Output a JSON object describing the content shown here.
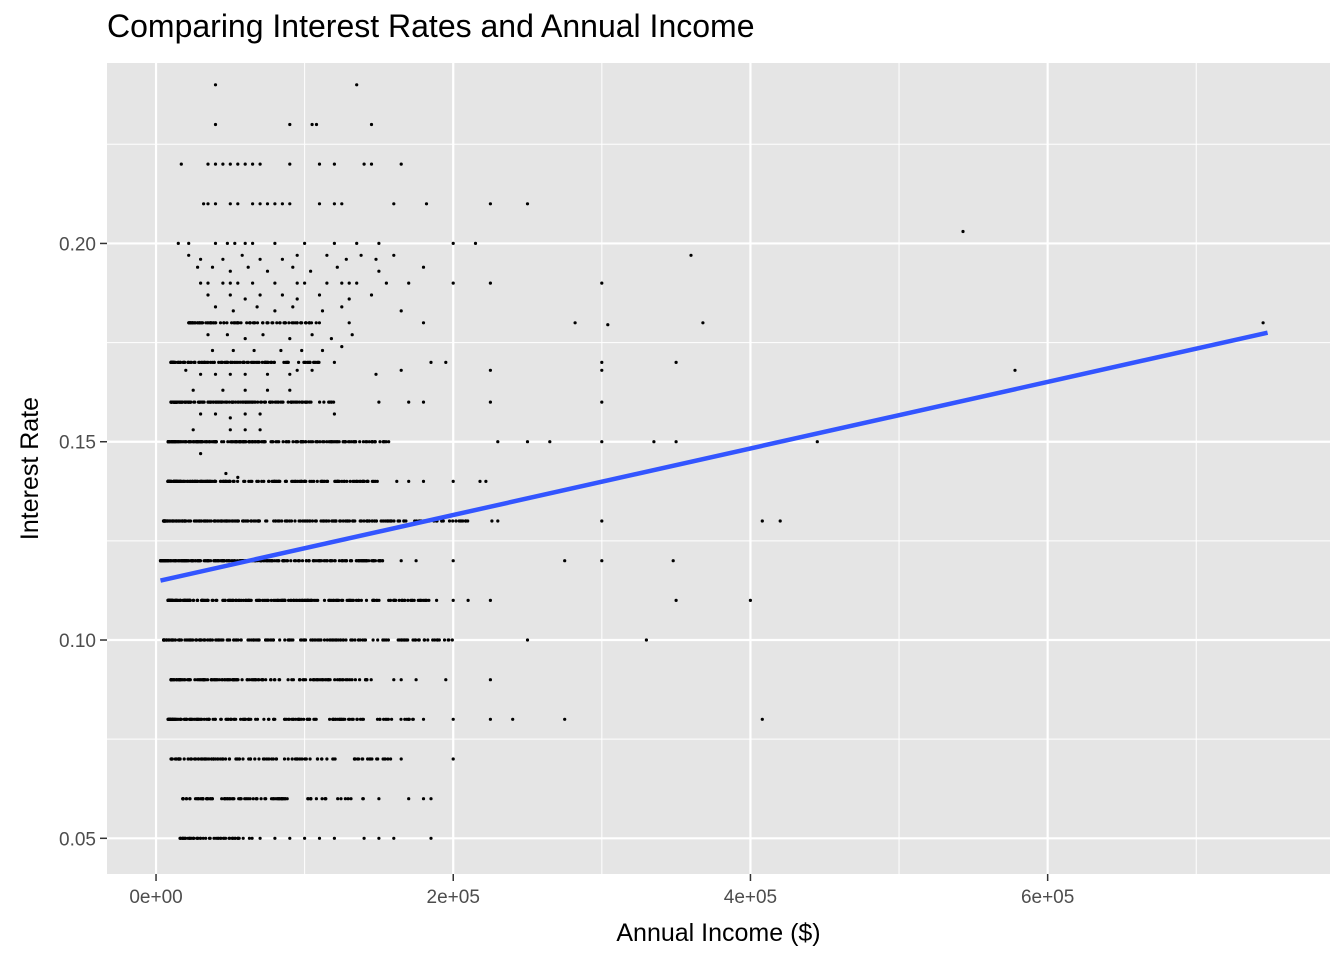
{
  "chart_data": {
    "type": "scatter",
    "title": "Comparing Interest Rates and Annual Income",
    "xlabel": "Annual Income ($)",
    "ylabel": "Interest Rate",
    "xlim": [
      -33000,
      790000
    ],
    "ylim": [
      0.041,
      0.2455
    ],
    "x_ticks": [
      0,
      200000,
      400000,
      600000
    ],
    "x_tick_labels": [
      "0e+00",
      "2e+05",
      "4e+05",
      "6e+05"
    ],
    "x_minor_ticks": [
      100000,
      300000,
      500000,
      700000
    ],
    "y_ticks": [
      0.05,
      0.1,
      0.15,
      0.2
    ],
    "y_tick_labels": [
      "0.05",
      "0.10",
      "0.15",
      "0.20"
    ],
    "y_minor_ticks": [
      0.075,
      0.125,
      0.175,
      0.225
    ],
    "grid": true,
    "legend": "none",
    "panel_color": "#e5e5e5",
    "grid_color": "#ffffff",
    "point_color": "#000000",
    "trend_color": "#3355ff",
    "trend_line": {
      "x": [
        3000,
        748000
      ],
      "y": [
        0.115,
        0.1775
      ]
    },
    "dense_rows": [
      {
        "y": 0.05,
        "min": 15000,
        "max": 65000,
        "n": 50
      },
      {
        "y": 0.06,
        "min": 18000,
        "max": 140000,
        "n": 90
      },
      {
        "y": 0.07,
        "min": 10000,
        "max": 160000,
        "n": 110
      },
      {
        "y": 0.08,
        "min": 8000,
        "max": 175000,
        "n": 160
      },
      {
        "y": 0.09,
        "min": 10000,
        "max": 150000,
        "n": 140
      },
      {
        "y": 0.1,
        "min": 5000,
        "max": 200000,
        "n": 200
      },
      {
        "y": 0.11,
        "min": 8000,
        "max": 190000,
        "n": 230
      },
      {
        "y": 0.12,
        "min": 3000,
        "max": 160000,
        "n": 250
      },
      {
        "y": 0.13,
        "min": 5000,
        "max": 210000,
        "n": 260
      },
      {
        "y": 0.14,
        "min": 8000,
        "max": 150000,
        "n": 200
      },
      {
        "y": 0.15,
        "min": 8000,
        "max": 160000,
        "n": 200
      },
      {
        "y": 0.16,
        "min": 10000,
        "max": 120000,
        "n": 150
      },
      {
        "y": 0.17,
        "min": 10000,
        "max": 110000,
        "n": 110
      },
      {
        "y": 0.18,
        "min": 22000,
        "max": 110000,
        "n": 90
      }
    ],
    "points": [
      [
        40000,
        0.24
      ],
      [
        135000,
        0.24
      ],
      [
        40000,
        0.23
      ],
      [
        90000,
        0.23
      ],
      [
        105000,
        0.23
      ],
      [
        108000,
        0.23
      ],
      [
        145000,
        0.23
      ],
      [
        17000,
        0.22
      ],
      [
        35000,
        0.22
      ],
      [
        40000,
        0.22
      ],
      [
        45000,
        0.22
      ],
      [
        50000,
        0.22
      ],
      [
        55000,
        0.22
      ],
      [
        60000,
        0.22
      ],
      [
        65000,
        0.22
      ],
      [
        70000,
        0.22
      ],
      [
        90000,
        0.22
      ],
      [
        110000,
        0.22
      ],
      [
        120000,
        0.22
      ],
      [
        140000,
        0.22
      ],
      [
        145000,
        0.22
      ],
      [
        165000,
        0.22
      ],
      [
        32000,
        0.21
      ],
      [
        35000,
        0.21
      ],
      [
        40000,
        0.21
      ],
      [
        50000,
        0.21
      ],
      [
        55000,
        0.21
      ],
      [
        65000,
        0.21
      ],
      [
        70000,
        0.21
      ],
      [
        75000,
        0.21
      ],
      [
        80000,
        0.21
      ],
      [
        85000,
        0.21
      ],
      [
        90000,
        0.21
      ],
      [
        110000,
        0.21
      ],
      [
        120000,
        0.21
      ],
      [
        125000,
        0.21
      ],
      [
        160000,
        0.21
      ],
      [
        182000,
        0.21
      ],
      [
        225000,
        0.21
      ],
      [
        250000,
        0.21
      ],
      [
        15000,
        0.2
      ],
      [
        22000,
        0.2
      ],
      [
        40000,
        0.2
      ],
      [
        48000,
        0.2
      ],
      [
        53000,
        0.2
      ],
      [
        60000,
        0.2
      ],
      [
        65000,
        0.2
      ],
      [
        80000,
        0.2
      ],
      [
        100000,
        0.2
      ],
      [
        120000,
        0.2
      ],
      [
        135000,
        0.2
      ],
      [
        150000,
        0.2
      ],
      [
        200000,
        0.2
      ],
      [
        215000,
        0.2
      ],
      [
        543000,
        0.203
      ],
      [
        22000,
        0.197
      ],
      [
        30000,
        0.196
      ],
      [
        45000,
        0.196
      ],
      [
        58000,
        0.197
      ],
      [
        70000,
        0.196
      ],
      [
        85000,
        0.196
      ],
      [
        95000,
        0.197
      ],
      [
        115000,
        0.197
      ],
      [
        128000,
        0.196
      ],
      [
        138000,
        0.197
      ],
      [
        148000,
        0.196
      ],
      [
        160000,
        0.197
      ],
      [
        360000,
        0.197
      ],
      [
        28000,
        0.194
      ],
      [
        38000,
        0.194
      ],
      [
        50000,
        0.193
      ],
      [
        62000,
        0.194
      ],
      [
        75000,
        0.193
      ],
      [
        92000,
        0.194
      ],
      [
        104000,
        0.193
      ],
      [
        122000,
        0.194
      ],
      [
        150000,
        0.193
      ],
      [
        180000,
        0.194
      ],
      [
        30000,
        0.19
      ],
      [
        35000,
        0.19
      ],
      [
        45000,
        0.19
      ],
      [
        50000,
        0.19
      ],
      [
        55000,
        0.19
      ],
      [
        65000,
        0.19
      ],
      [
        80000,
        0.19
      ],
      [
        95000,
        0.19
      ],
      [
        100000,
        0.19
      ],
      [
        115000,
        0.19
      ],
      [
        125000,
        0.19
      ],
      [
        130000,
        0.19
      ],
      [
        135000,
        0.19
      ],
      [
        155000,
        0.19
      ],
      [
        170000,
        0.19
      ],
      [
        200000,
        0.19
      ],
      [
        225000,
        0.19
      ],
      [
        300000,
        0.19
      ],
      [
        35000,
        0.187
      ],
      [
        50000,
        0.187
      ],
      [
        60000,
        0.186
      ],
      [
        70000,
        0.187
      ],
      [
        85000,
        0.187
      ],
      [
        95000,
        0.186
      ],
      [
        110000,
        0.187
      ],
      [
        130000,
        0.186
      ],
      [
        145000,
        0.187
      ],
      [
        40000,
        0.184
      ],
      [
        52000,
        0.183
      ],
      [
        68000,
        0.184
      ],
      [
        80000,
        0.183
      ],
      [
        92000,
        0.184
      ],
      [
        112000,
        0.183
      ],
      [
        125000,
        0.184
      ],
      [
        165000,
        0.183
      ],
      [
        282000,
        0.18
      ],
      [
        304000,
        0.1795
      ],
      [
        368000,
        0.18
      ],
      [
        180000,
        0.18
      ],
      [
        130000,
        0.18
      ],
      [
        745000,
        0.18
      ],
      [
        35000,
        0.177
      ],
      [
        48000,
        0.177
      ],
      [
        60000,
        0.176
      ],
      [
        72000,
        0.177
      ],
      [
        90000,
        0.176
      ],
      [
        105000,
        0.177
      ],
      [
        118000,
        0.176
      ],
      [
        132000,
        0.177
      ],
      [
        38000,
        0.173
      ],
      [
        52000,
        0.173
      ],
      [
        66000,
        0.173
      ],
      [
        84000,
        0.173
      ],
      [
        98000,
        0.173
      ],
      [
        112000,
        0.173
      ],
      [
        125000,
        0.174
      ],
      [
        120000,
        0.17
      ],
      [
        185000,
        0.17
      ],
      [
        195000,
        0.17
      ],
      [
        300000,
        0.17
      ],
      [
        350000,
        0.17
      ],
      [
        20000,
        0.168
      ],
      [
        30000,
        0.167
      ],
      [
        40000,
        0.167
      ],
      [
        50000,
        0.167
      ],
      [
        60000,
        0.167
      ],
      [
        75000,
        0.167
      ],
      [
        90000,
        0.167
      ],
      [
        95000,
        0.168
      ],
      [
        105000,
        0.168
      ],
      [
        148000,
        0.167
      ],
      [
        165000,
        0.168
      ],
      [
        225000,
        0.168
      ],
      [
        300000,
        0.168
      ],
      [
        578000,
        0.168
      ],
      [
        25000,
        0.163
      ],
      [
        45000,
        0.163
      ],
      [
        60000,
        0.163
      ],
      [
        75000,
        0.163
      ],
      [
        90000,
        0.163
      ],
      [
        150000,
        0.16
      ],
      [
        170000,
        0.16
      ],
      [
        180000,
        0.16
      ],
      [
        225000,
        0.16
      ],
      [
        300000,
        0.16
      ],
      [
        30000,
        0.157
      ],
      [
        40000,
        0.157
      ],
      [
        50000,
        0.156
      ],
      [
        60000,
        0.157
      ],
      [
        70000,
        0.157
      ],
      [
        120000,
        0.157
      ],
      [
        25000,
        0.153
      ],
      [
        50000,
        0.153
      ],
      [
        60000,
        0.153
      ],
      [
        70000,
        0.153
      ],
      [
        230000,
        0.15
      ],
      [
        250000,
        0.15
      ],
      [
        265000,
        0.15
      ],
      [
        300000,
        0.15
      ],
      [
        335000,
        0.15
      ],
      [
        350000,
        0.15
      ],
      [
        445000,
        0.15
      ],
      [
        30000,
        0.147
      ],
      [
        47000,
        0.142
      ],
      [
        55000,
        0.141
      ],
      [
        162000,
        0.14
      ],
      [
        170000,
        0.14
      ],
      [
        180000,
        0.14
      ],
      [
        200000,
        0.14
      ],
      [
        218000,
        0.14
      ],
      [
        222000,
        0.14
      ],
      [
        226000,
        0.13
      ],
      [
        230000,
        0.13
      ],
      [
        300000,
        0.13
      ],
      [
        408000,
        0.13
      ],
      [
        420000,
        0.13
      ],
      [
        165000,
        0.12
      ],
      [
        175000,
        0.12
      ],
      [
        200000,
        0.12
      ],
      [
        275000,
        0.12
      ],
      [
        300000,
        0.12
      ],
      [
        348000,
        0.12
      ],
      [
        200000,
        0.11
      ],
      [
        210000,
        0.11
      ],
      [
        225000,
        0.11
      ],
      [
        350000,
        0.11
      ],
      [
        400000,
        0.11
      ],
      [
        250000,
        0.1
      ],
      [
        330000,
        0.1
      ],
      [
        160000,
        0.09
      ],
      [
        165000,
        0.09
      ],
      [
        175000,
        0.09
      ],
      [
        195000,
        0.09
      ],
      [
        225000,
        0.09
      ],
      [
        180000,
        0.08
      ],
      [
        200000,
        0.08
      ],
      [
        225000,
        0.08
      ],
      [
        240000,
        0.08
      ],
      [
        275000,
        0.08
      ],
      [
        408000,
        0.08
      ],
      [
        165000,
        0.07
      ],
      [
        200000,
        0.07
      ],
      [
        150000,
        0.06
      ],
      [
        170000,
        0.06
      ],
      [
        180000,
        0.06
      ],
      [
        185000,
        0.06
      ],
      [
        70000,
        0.05
      ],
      [
        80000,
        0.05
      ],
      [
        90000,
        0.05
      ],
      [
        100000,
        0.05
      ],
      [
        110000,
        0.05
      ],
      [
        120000,
        0.05
      ],
      [
        140000,
        0.05
      ],
      [
        150000,
        0.05
      ],
      [
        160000,
        0.05
      ],
      [
        185000,
        0.05
      ]
    ]
  }
}
